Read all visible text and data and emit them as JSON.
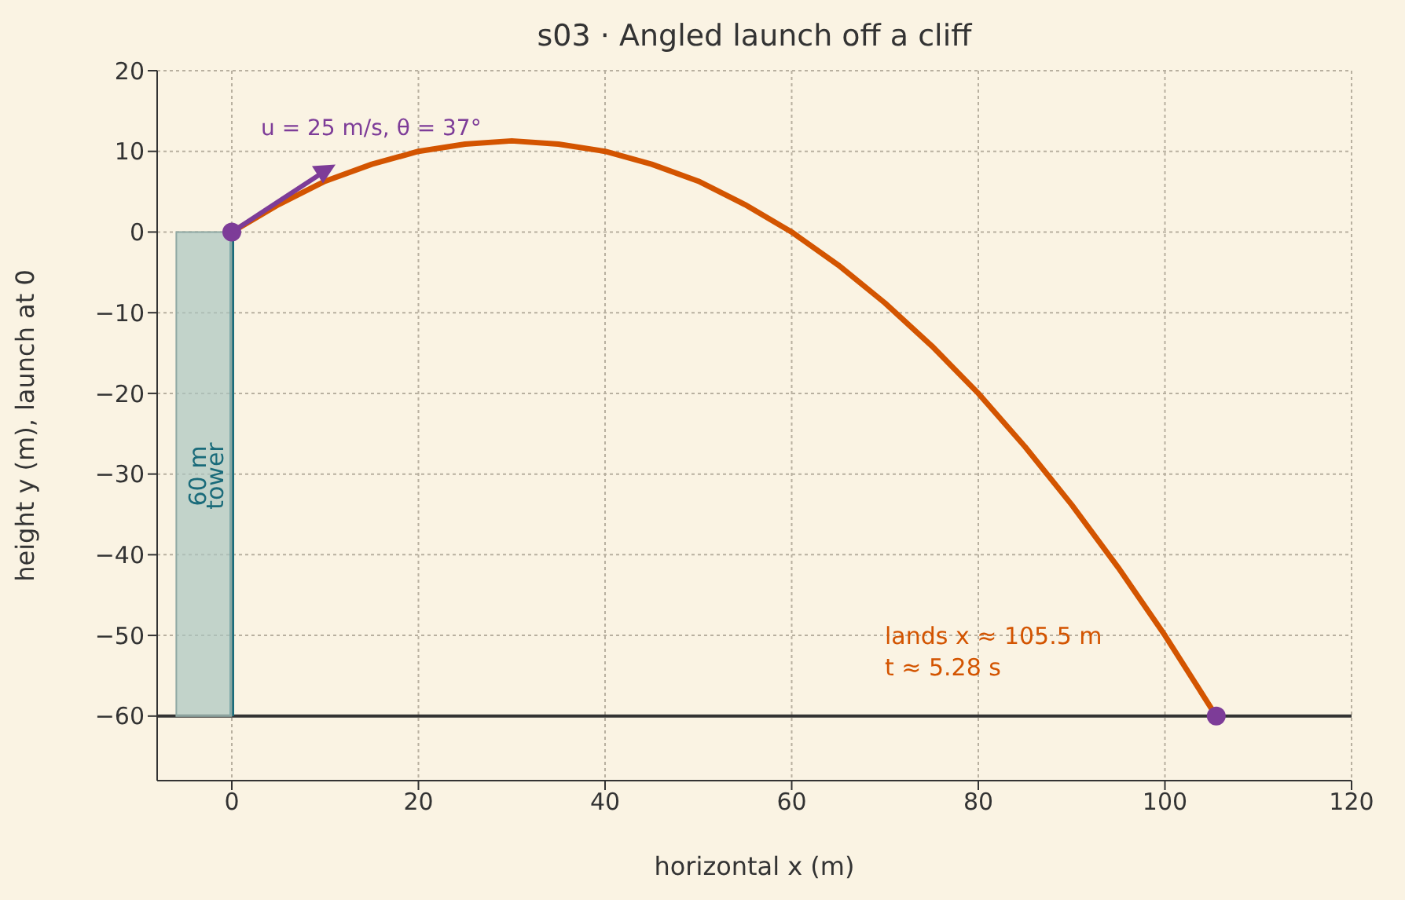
{
  "chart_data": {
    "type": "line",
    "title": "s03 · Angled launch off a cliff",
    "xlabel": "horizontal x (m)",
    "ylabel": "height y (m), launch at 0",
    "xlim": [
      -8,
      120
    ],
    "xticks": [
      0,
      20,
      40,
      60,
      80,
      100,
      120
    ],
    "ylim": [
      -68,
      20
    ],
    "yticks": [
      -60,
      -50,
      -40,
      -30,
      -20,
      -10,
      0,
      10,
      20
    ],
    "grid": true,
    "legend": false,
    "series": [
      {
        "type": "bar",
        "color": "#a9c4bf",
        "x": [
          -3
        ],
        "values": [
          60
        ],
        "base": [
          -60
        ]
      },
      {
        "type": "line",
        "color": "#1a6b7a",
        "x": [
          0,
          0
        ],
        "values": [
          -60,
          0
        ]
      },
      {
        "color": "#d35400",
        "x": [
          0,
          5,
          10,
          15,
          20,
          25,
          30,
          35,
          40,
          45,
          50,
          55,
          60,
          65,
          70,
          75,
          80,
          85,
          90,
          95,
          100,
          105.5
        ],
        "values": [
          0,
          3.4,
          6.3,
          8.4,
          10,
          10.9,
          11.3,
          10.9,
          10,
          8.4,
          6.3,
          3.4,
          0,
          -4.1,
          -8.8,
          -14.1,
          -20,
          -26.6,
          -33.8,
          -41.6,
          -50,
          -60
        ]
      },
      {
        "type": "scatter",
        "color": "#7d3c98",
        "marker": "circle",
        "x": [
          0,
          105.5
        ],
        "values": [
          0,
          -60
        ]
      }
    ],
    "ref_lines": [
      {
        "axis": "y",
        "value": -60,
        "color": "#333333"
      }
    ],
    "annotations": [
      "u = 25 m/s, θ = 37°",
      "lands x ≈ 105.5 m\nt ≈ 5.28 s",
      "60 m\ntower"
    ]
  }
}
